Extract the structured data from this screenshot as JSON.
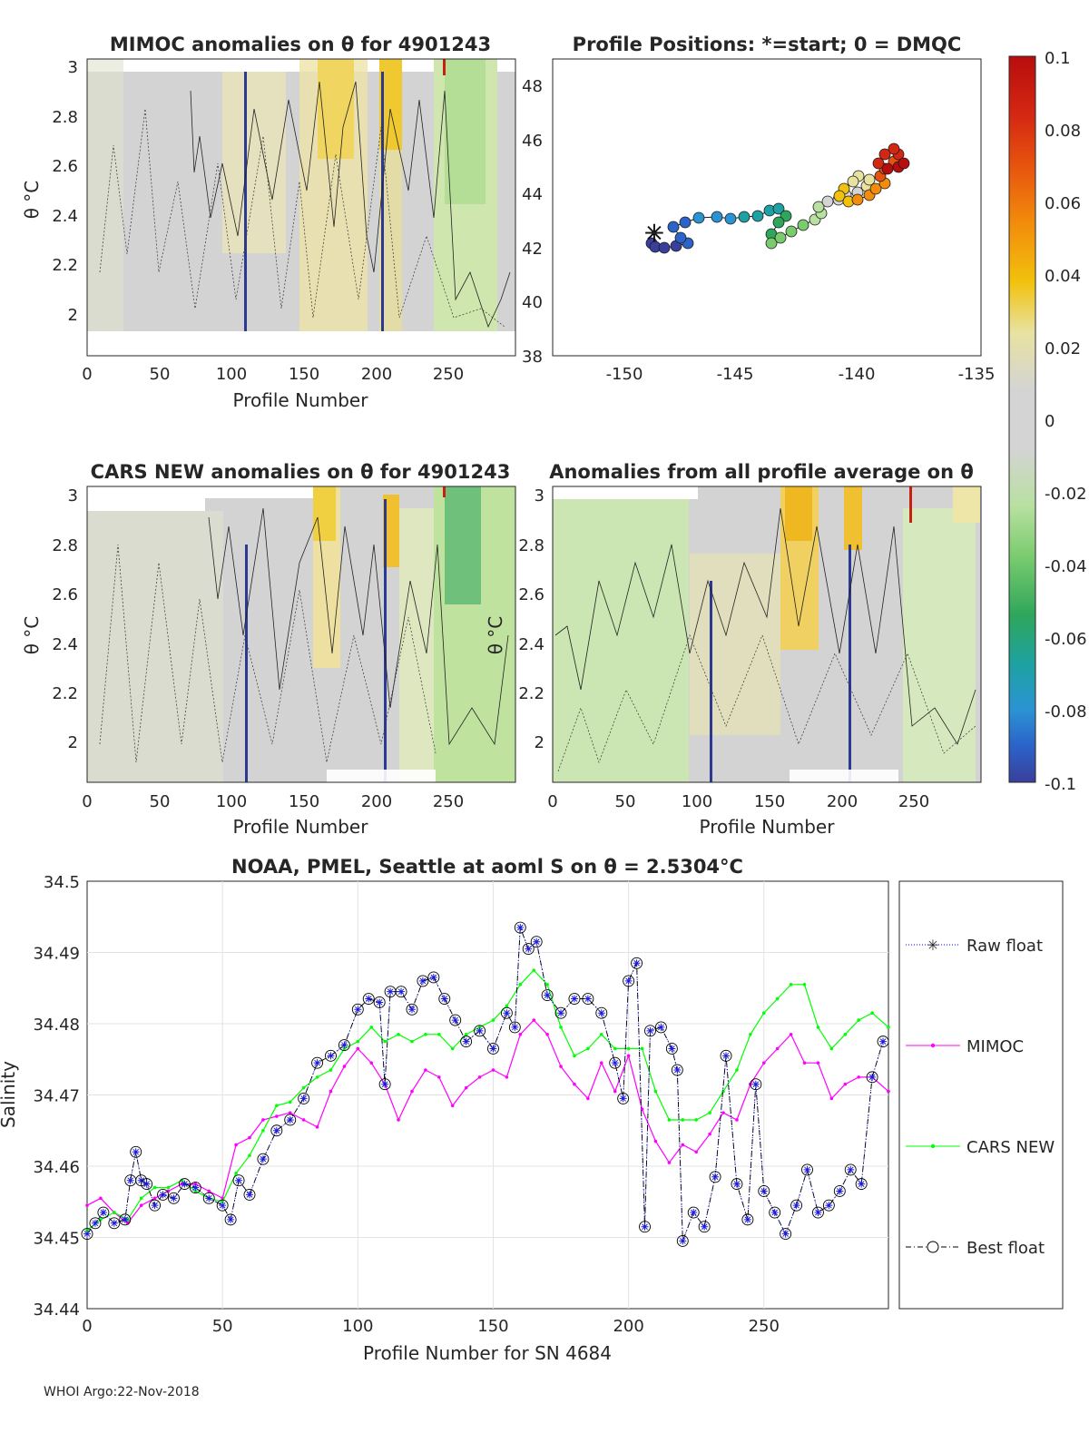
{
  "footer": "WHOI Argo:22-Nov-2018",
  "colorbar": {
    "ticks": [
      "0.1",
      "0.08",
      "0.06",
      "0.04",
      "0.02",
      "0",
      "-0.02",
      "-0.04",
      "-0.06",
      "-0.08",
      "-0.1"
    ],
    "colors": [
      "#b70d0d",
      "#d42713",
      "#e6530e",
      "#f28c0c",
      "#f2c10c",
      "#e8e2a0",
      "#d4d4d4",
      "#b8e0a0",
      "#7acb6e",
      "#2ea65b",
      "#1ea1a4",
      "#2b93d3",
      "#2b63c9",
      "#3a3f9c"
    ]
  },
  "panels": {
    "mimoc": {
      "title": "MIMOC anomalies on θ  for 4901243",
      "ylabel": "θ °C",
      "xlabel": "Profile Number",
      "yticks": [
        "3",
        "2.8",
        "2.6",
        "2.4",
        "2.2",
        "2"
      ],
      "xticks": [
        "0",
        "50",
        "100",
        "150",
        "200",
        "250"
      ]
    },
    "positions": {
      "title": "Profile Positions: *=start; 0 = DMQC",
      "yticks": [
        "48",
        "46",
        "44",
        "42",
        "40",
        "38"
      ],
      "xticks": [
        "-150",
        "-145",
        "-140",
        "-135"
      ]
    },
    "cars": {
      "title": "CARS NEW anomalies on θ for 4901243",
      "ylabel": "θ °C",
      "xlabel": "Profile Number",
      "yticks": [
        "3",
        "2.8",
        "2.6",
        "2.4",
        "2.2",
        "2"
      ],
      "xticks": [
        "0",
        "50",
        "100",
        "150",
        "200",
        "250"
      ]
    },
    "average": {
      "title": "Anomalies from all profile average on θ",
      "ylabel": "θ °C",
      "xlabel": "Profile Number",
      "yticks": [
        "3",
        "2.8",
        "2.6",
        "2.4",
        "2.2",
        "2"
      ],
      "xticks": [
        "0",
        "50",
        "100",
        "150",
        "200",
        "250"
      ]
    }
  },
  "chart_data": {
    "type": "line",
    "title": "NOAA, PMEL, Seattle at aoml S on θ = 2.5304°C",
    "xlabel": "Profile Number for SN 4684",
    "ylabel": "Salinity",
    "xlim": [
      0,
      296
    ],
    "ylim": [
      34.44,
      34.5
    ],
    "xticks": [
      "0",
      "50",
      "100",
      "150",
      "200",
      "250"
    ],
    "yticks": [
      "34.44",
      "34.45",
      "34.46",
      "34.47",
      "34.48",
      "34.49",
      "34.5"
    ],
    "legend": [
      "Raw float",
      "MIMOC",
      "CARS NEW",
      "Best float"
    ],
    "series": [
      {
        "name": "Raw float",
        "color": "#0000ff",
        "x": [
          0,
          3,
          6,
          10,
          14,
          16,
          18,
          20,
          22,
          25,
          28,
          32,
          36,
          40,
          45,
          50,
          53,
          56,
          60,
          65,
          70,
          75,
          80,
          85,
          90,
          95,
          100,
          104,
          108,
          110,
          112,
          116,
          120,
          124,
          128,
          132,
          136,
          140,
          145,
          150,
          155,
          158,
          160,
          163,
          166,
          170,
          175,
          180,
          185,
          190,
          195,
          198,
          200,
          203,
          206,
          208,
          212,
          216,
          218,
          220,
          224,
          228,
          232,
          236,
          240,
          244,
          247,
          250,
          254,
          258,
          262,
          266,
          270,
          274,
          278,
          282,
          286,
          290,
          294
        ],
        "y": [
          34.4505,
          34.452,
          34.4535,
          34.452,
          34.4525,
          34.458,
          34.462,
          34.458,
          34.4575,
          34.4545,
          34.456,
          34.4555,
          34.4575,
          34.457,
          34.4555,
          34.4545,
          34.4525,
          34.458,
          34.456,
          34.461,
          34.465,
          34.4665,
          34.4695,
          34.4745,
          34.4755,
          34.477,
          34.482,
          34.4835,
          34.483,
          34.4715,
          34.4845,
          34.4845,
          34.482,
          34.486,
          34.4865,
          34.4835,
          34.4805,
          34.4775,
          34.479,
          34.4765,
          34.4815,
          34.4795,
          34.4935,
          34.4905,
          34.4915,
          34.484,
          34.4815,
          34.4835,
          34.4835,
          34.4815,
          34.4745,
          34.4695,
          34.486,
          34.4885,
          34.4515,
          34.479,
          34.4795,
          34.4765,
          34.4735,
          34.4495,
          34.4535,
          34.4515,
          34.4585,
          34.4755,
          34.4575,
          34.4525,
          34.4715,
          34.4565,
          34.4535,
          34.4505,
          34.4545,
          34.4595,
          34.4535,
          34.4545,
          34.4565,
          34.4595,
          34.4575,
          34.4725,
          34.4775
        ]
      },
      {
        "name": "MIMOC",
        "color": "#ff00ff",
        "x": [
          0,
          5,
          10,
          15,
          20,
          25,
          30,
          35,
          40,
          45,
          50,
          55,
          60,
          65,
          70,
          75,
          80,
          85,
          90,
          95,
          100,
          105,
          110,
          115,
          120,
          125,
          130,
          135,
          140,
          145,
          150,
          155,
          160,
          165,
          170,
          175,
          180,
          185,
          190,
          195,
          200,
          205,
          210,
          215,
          220,
          225,
          230,
          235,
          240,
          245,
          250,
          255,
          260,
          265,
          270,
          275,
          280,
          285,
          290,
          296
        ],
        "y": [
          34.4545,
          34.4555,
          34.4535,
          34.452,
          34.4545,
          34.4555,
          34.4565,
          34.4575,
          34.4575,
          34.4565,
          34.4555,
          34.463,
          34.464,
          34.4665,
          34.467,
          34.4675,
          34.4665,
          34.4655,
          34.4705,
          34.474,
          34.4765,
          34.4745,
          34.4715,
          34.4665,
          34.4705,
          34.4735,
          34.4725,
          34.4685,
          34.471,
          34.4725,
          34.4735,
          34.4725,
          34.4785,
          34.4805,
          34.4785,
          34.474,
          34.4715,
          34.4695,
          34.4745,
          34.4705,
          34.4755,
          34.468,
          34.4635,
          34.4605,
          34.463,
          34.462,
          34.4645,
          34.4675,
          34.4665,
          34.4715,
          34.4745,
          34.4765,
          34.4785,
          34.4745,
          34.4745,
          34.4695,
          34.4715,
          34.4725,
          34.4725,
          34.4705
        ]
      },
      {
        "name": "CARS NEW",
        "color": "#00ff00",
        "x": [
          0,
          5,
          10,
          15,
          20,
          25,
          30,
          35,
          40,
          45,
          50,
          55,
          60,
          65,
          70,
          75,
          80,
          85,
          90,
          95,
          100,
          105,
          110,
          115,
          120,
          125,
          130,
          135,
          140,
          145,
          150,
          155,
          160,
          165,
          170,
          175,
          180,
          185,
          190,
          195,
          200,
          205,
          210,
          215,
          220,
          225,
          230,
          235,
          240,
          245,
          250,
          255,
          260,
          265,
          270,
          275,
          280,
          285,
          290,
          296
        ],
        "y": [
          34.451,
          34.4525,
          34.4535,
          34.4525,
          34.4555,
          34.457,
          34.457,
          34.458,
          34.4565,
          34.4555,
          34.455,
          34.459,
          34.4615,
          34.465,
          34.4685,
          34.469,
          34.471,
          34.4725,
          34.4735,
          34.4765,
          34.4775,
          34.4795,
          34.4775,
          34.4785,
          34.4775,
          34.4785,
          34.4785,
          34.4765,
          34.4785,
          34.4795,
          34.4805,
          34.4825,
          34.4855,
          34.4875,
          34.4855,
          34.4795,
          34.4755,
          34.4765,
          34.4785,
          34.4765,
          34.4765,
          34.4765,
          34.4705,
          34.4665,
          34.4665,
          34.4665,
          34.4675,
          34.4705,
          34.4735,
          34.4785,
          34.4815,
          34.4835,
          34.4855,
          34.4855,
          34.4795,
          34.4765,
          34.4785,
          34.4805,
          34.4815,
          34.4795
        ]
      }
    ]
  }
}
